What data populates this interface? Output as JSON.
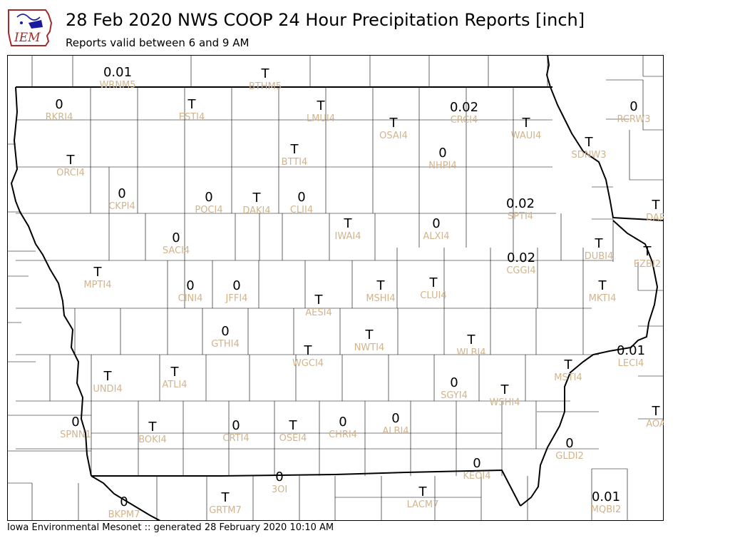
{
  "header": {
    "title": "28 Feb 2020 NWS COOP 24 Hour Precipitation Reports [inch]",
    "subtitle": "Reports valid between 6 and 9 AM",
    "logo_text": "IEM"
  },
  "footer": {
    "text": "Iowa Environmental Mesonet :: generated 28 February 2020 10:10 AM"
  },
  "colors": {
    "station_label": "#d2b48c",
    "value": "#000000",
    "state_border": "#000000",
    "county_border": "#000000",
    "logo_red": "#a52a2a",
    "logo_blue": "#1a1aa0"
  },
  "stations": [
    {
      "id": "WRNM5",
      "value": "0.01"
    },
    {
      "id": "BTHM5",
      "value": "T"
    },
    {
      "id": "RKRI4",
      "value": "0"
    },
    {
      "id": "ESTI4",
      "value": "T"
    },
    {
      "id": "LMUI4",
      "value": "T"
    },
    {
      "id": "OSAI4",
      "value": "T"
    },
    {
      "id": "CRCI4",
      "value": "0.02"
    },
    {
      "id": "WAUI4",
      "value": "T"
    },
    {
      "id": "RCRW3",
      "value": "0"
    },
    {
      "id": "SDNW3",
      "value": "T"
    },
    {
      "id": "ORCI4",
      "value": "T"
    },
    {
      "id": "BTTI4",
      "value": "T"
    },
    {
      "id": "NHPI4",
      "value": "0"
    },
    {
      "id": "CKPI4",
      "value": "0"
    },
    {
      "id": "POCI4",
      "value": "0"
    },
    {
      "id": "DAKI4",
      "value": "T"
    },
    {
      "id": "CLII4",
      "value": "0"
    },
    {
      "id": "IWAI4",
      "value": "T"
    },
    {
      "id": "ALXI4",
      "value": "0"
    },
    {
      "id": "SPTI4",
      "value": "0.02"
    },
    {
      "id": "DAR",
      "value": "T"
    },
    {
      "id": "SACI4",
      "value": "0"
    },
    {
      "id": "DUBI4",
      "value": "T"
    },
    {
      "id": "EZBI2",
      "value": "T"
    },
    {
      "id": "CGGI4",
      "value": "0.02"
    },
    {
      "id": "MPTI4",
      "value": "T"
    },
    {
      "id": "CINI4",
      "value": "0"
    },
    {
      "id": "JFFI4",
      "value": "0"
    },
    {
      "id": "AESI4",
      "value": "T"
    },
    {
      "id": "MSHI4",
      "value": "T"
    },
    {
      "id": "CLUI4",
      "value": "T"
    },
    {
      "id": "MKTI4",
      "value": "T"
    },
    {
      "id": "GTHI4",
      "value": "0"
    },
    {
      "id": "WGCI4",
      "value": "T"
    },
    {
      "id": "NWTI4",
      "value": "T"
    },
    {
      "id": "WLBI4",
      "value": "T"
    },
    {
      "id": "LECI4",
      "value": "0.01"
    },
    {
      "id": "MSTI4",
      "value": "T"
    },
    {
      "id": "UNDI4",
      "value": "T"
    },
    {
      "id": "ATLI4",
      "value": "T"
    },
    {
      "id": "SGYI4",
      "value": "0"
    },
    {
      "id": "WSHI4",
      "value": "T"
    },
    {
      "id": "SPNN1",
      "value": "0"
    },
    {
      "id": "BOKI4",
      "value": "T"
    },
    {
      "id": "CRTI4",
      "value": "0"
    },
    {
      "id": "OSEI4",
      "value": "T"
    },
    {
      "id": "CHRI4",
      "value": "0"
    },
    {
      "id": "ALBI4",
      "value": "0"
    },
    {
      "id": "AOA",
      "value": "T"
    },
    {
      "id": "GLDI2",
      "value": "0"
    },
    {
      "id": "KEOI4",
      "value": "0"
    },
    {
      "id": "3OI",
      "value": "0"
    },
    {
      "id": "BKPM7",
      "value": "0"
    },
    {
      "id": "GRTM7",
      "value": "T"
    },
    {
      "id": "LACM7",
      "value": "T"
    },
    {
      "id": "MQBI2",
      "value": "0.01"
    }
  ]
}
